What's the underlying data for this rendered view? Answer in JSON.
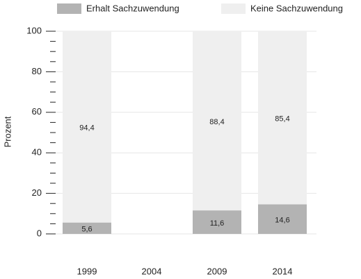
{
  "chart_data": {
    "type": "stacked_bar",
    "categories": [
      "1999",
      "2004",
      "2009",
      "2014"
    ],
    "series": [
      {
        "name": "Erhalt Sachzuwendung",
        "color": "#b3b3b3",
        "values": [
          5.6,
          null,
          11.6,
          14.6
        ],
        "value_labels": [
          "5,6",
          null,
          "11,6",
          "14,6"
        ]
      },
      {
        "name": "Keine Sachzuwendung",
        "color": "#efefef",
        "values": [
          94.4,
          null,
          88.4,
          85.4
        ],
        "value_labels": [
          "94,4",
          null,
          "88,4",
          "85,4"
        ]
      }
    ],
    "y_label": "Prozent",
    "ylim": [
      0,
      100
    ],
    "yticks": [
      0,
      20,
      40,
      60,
      80,
      100
    ],
    "yminor_ticks": [
      5,
      10,
      15,
      25,
      30,
      35,
      45,
      50,
      55,
      65,
      70,
      75,
      85,
      90,
      95
    ],
    "grid": true,
    "legend": "top"
  }
}
